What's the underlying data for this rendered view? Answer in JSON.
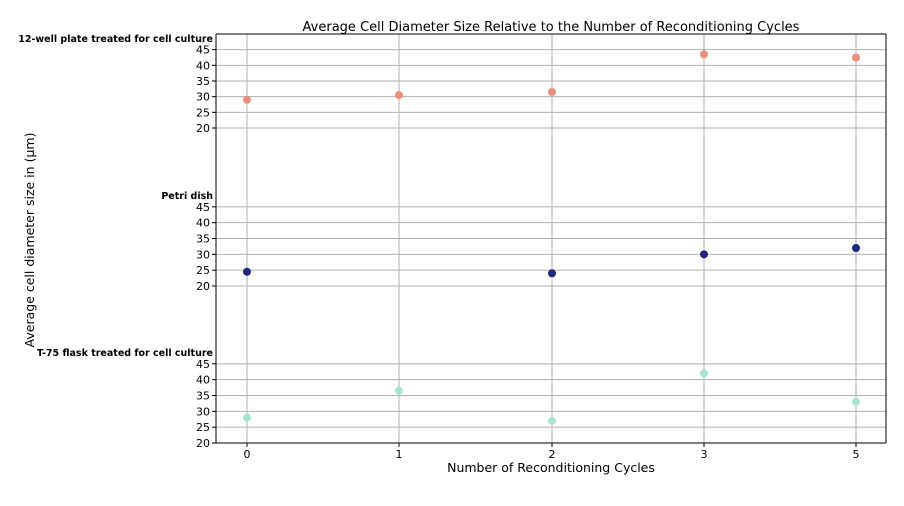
{
  "chart_data": {
    "type": "scatter",
    "title": "Average Cell Diameter Size Relative to the Number of Reconditioning Cycles",
    "xlabel": "Number of Reconditioning Cycles",
    "ylabel": "Average cell diameter size in (µm)",
    "x_ticks": [
      0,
      1,
      2,
      3,
      5
    ],
    "y_ticks": [
      20,
      25,
      30,
      35,
      40,
      45
    ],
    "panels": [
      {
        "name": "12-well plate treated for cell culture",
        "color": "#e8907a",
        "points": [
          {
            "x": 0,
            "y": 29
          },
          {
            "x": 1,
            "y": 30.5
          },
          {
            "x": 2,
            "y": 31.5
          },
          {
            "x": 3,
            "y": 43.5
          },
          {
            "x": 5,
            "y": 42.5
          }
        ]
      },
      {
        "name": "Petri dish",
        "color": "#23257a",
        "points": [
          {
            "x": 0,
            "y": 24.5
          },
          {
            "x": 2,
            "y": 24
          },
          {
            "x": 3,
            "y": 30
          },
          {
            "x": 5,
            "y": 32
          }
        ]
      },
      {
        "name": "T-75 flask treated for cell culture",
        "color": "#a8e4d4",
        "points": [
          {
            "x": 0,
            "y": 28
          },
          {
            "x": 1,
            "y": 36.5
          },
          {
            "x": 2,
            "y": 27
          },
          {
            "x": 3,
            "y": 42
          },
          {
            "x": 5,
            "y": 33
          }
        ]
      }
    ]
  }
}
